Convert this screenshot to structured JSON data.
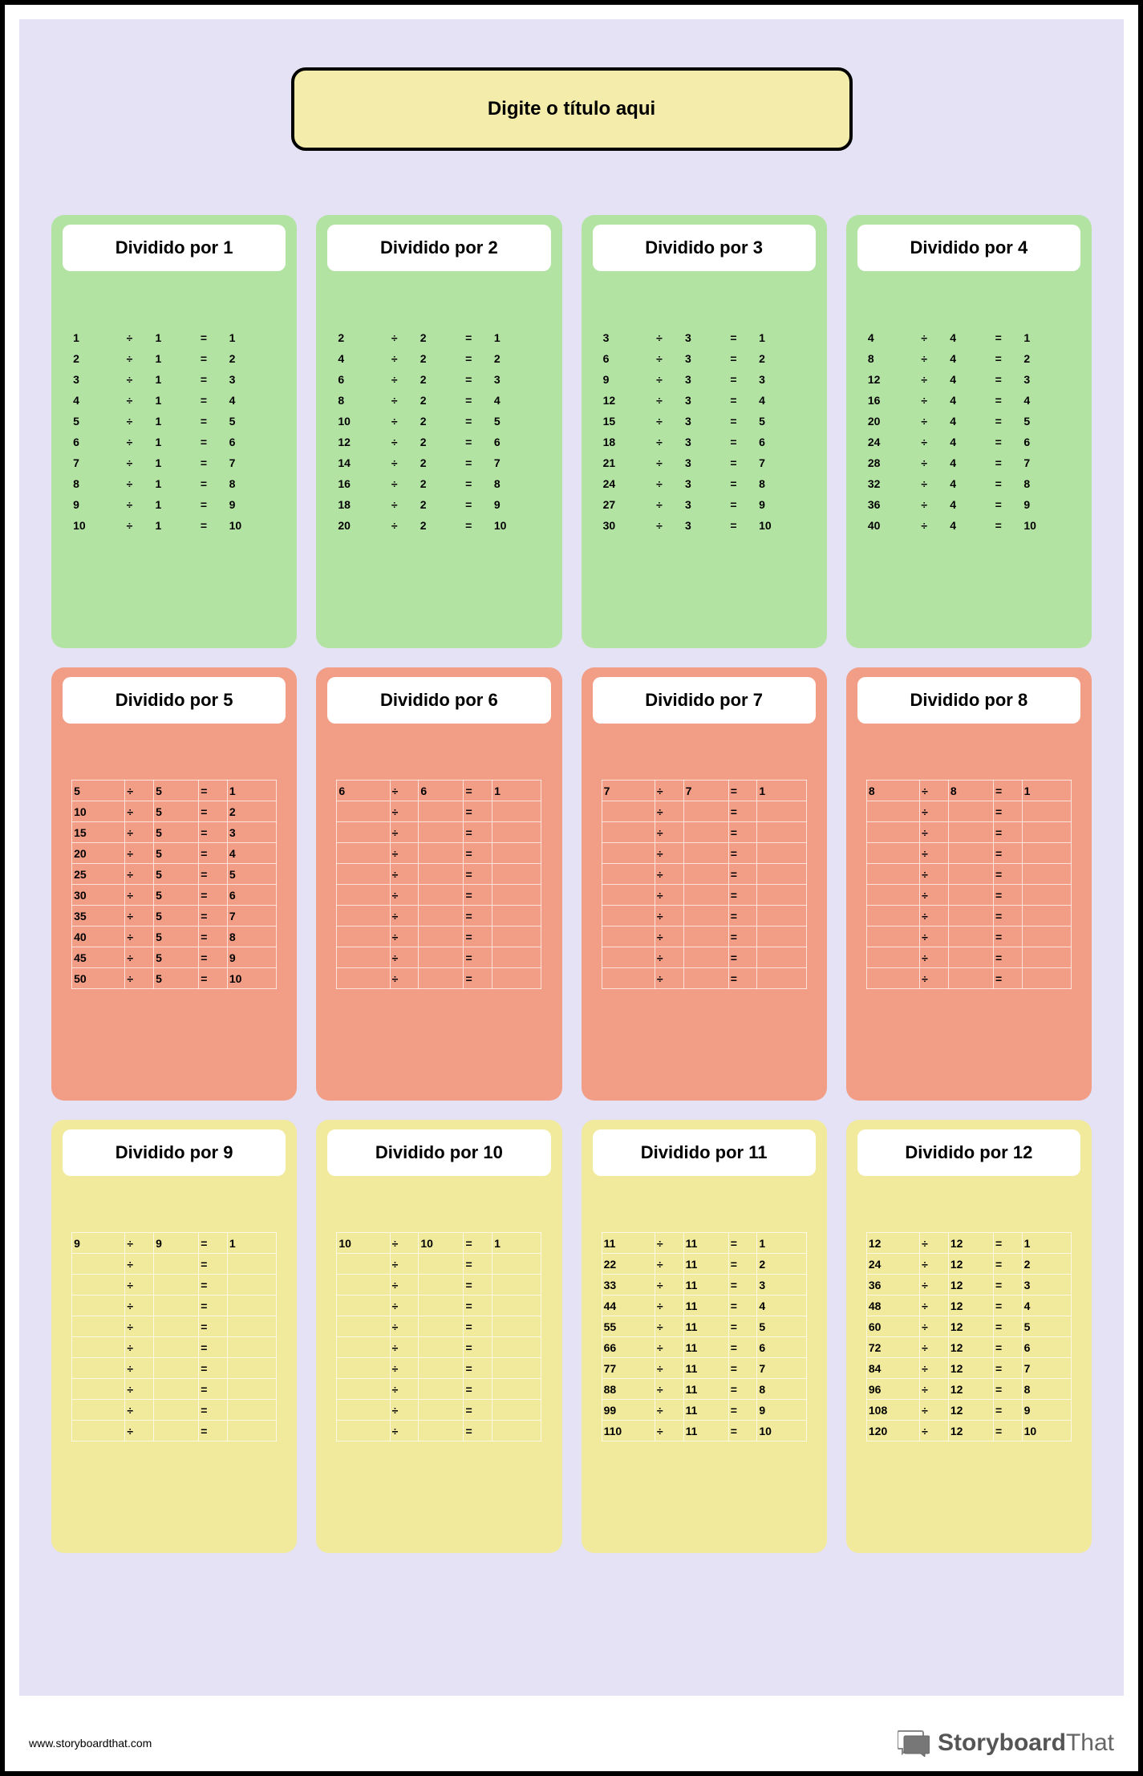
{
  "title": "Digite o título aqui",
  "footer_url": "www.storyboardthat.com",
  "brand_bold": "Storyboard",
  "brand_light": "That",
  "row_bg_colors": [
    "#b3e3a3",
    "#f29d86",
    "#f1e99b"
  ],
  "grid_border_for_rows": [
    false,
    true,
    true
  ],
  "cards": [
    {
      "header": "Dividido por 1",
      "rows": [
        [
          "1",
          "÷",
          "1",
          "=",
          "1"
        ],
        [
          "2",
          "÷",
          "1",
          "=",
          "2"
        ],
        [
          "3",
          "÷",
          "1",
          "=",
          "3"
        ],
        [
          "4",
          "÷",
          "1",
          "=",
          "4"
        ],
        [
          "5",
          "÷",
          "1",
          "=",
          "5"
        ],
        [
          "6",
          "÷",
          "1",
          "=",
          "6"
        ],
        [
          "7",
          "÷",
          "1",
          "=",
          "7"
        ],
        [
          "8",
          "÷",
          "1",
          "=",
          "8"
        ],
        [
          "9",
          "÷",
          "1",
          "=",
          "9"
        ],
        [
          "10",
          "÷",
          "1",
          "=",
          "10"
        ]
      ]
    },
    {
      "header": "Dividido por 2",
      "rows": [
        [
          "2",
          "÷",
          "2",
          "=",
          "1"
        ],
        [
          "4",
          "÷",
          "2",
          "=",
          "2"
        ],
        [
          "6",
          "÷",
          "2",
          "=",
          "3"
        ],
        [
          "8",
          "÷",
          "2",
          "=",
          "4"
        ],
        [
          "10",
          "÷",
          "2",
          "=",
          "5"
        ],
        [
          "12",
          "÷",
          "2",
          "=",
          "6"
        ],
        [
          "14",
          "÷",
          "2",
          "=",
          "7"
        ],
        [
          "16",
          "÷",
          "2",
          "=",
          "8"
        ],
        [
          "18",
          "÷",
          "2",
          "=",
          "9"
        ],
        [
          "20",
          "÷",
          "2",
          "=",
          "10"
        ]
      ]
    },
    {
      "header": "Dividido por 3",
      "rows": [
        [
          "3",
          "÷",
          "3",
          "=",
          "1"
        ],
        [
          "6",
          "÷",
          "3",
          "=",
          "2"
        ],
        [
          "9",
          "÷",
          "3",
          "=",
          "3"
        ],
        [
          "12",
          "÷",
          "3",
          "=",
          "4"
        ],
        [
          "15",
          "÷",
          "3",
          "=",
          "5"
        ],
        [
          "18",
          "÷",
          "3",
          "=",
          "6"
        ],
        [
          "21",
          "÷",
          "3",
          "=",
          "7"
        ],
        [
          "24",
          "÷",
          "3",
          "=",
          "8"
        ],
        [
          "27",
          "÷",
          "3",
          "=",
          "9"
        ],
        [
          "30",
          "÷",
          "3",
          "=",
          "10"
        ]
      ]
    },
    {
      "header": "Dividido por 4",
      "rows": [
        [
          "4",
          "÷",
          "4",
          "=",
          "1"
        ],
        [
          "8",
          "÷",
          "4",
          "=",
          "2"
        ],
        [
          "12",
          "÷",
          "4",
          "=",
          "3"
        ],
        [
          "16",
          "÷",
          "4",
          "=",
          "4"
        ],
        [
          "20",
          "÷",
          "4",
          "=",
          "5"
        ],
        [
          "24",
          "÷",
          "4",
          "=",
          "6"
        ],
        [
          "28",
          "÷",
          "4",
          "=",
          "7"
        ],
        [
          "32",
          "÷",
          "4",
          "=",
          "8"
        ],
        [
          "36",
          "÷",
          "4",
          "=",
          "9"
        ],
        [
          "40",
          "÷",
          "4",
          "=",
          "10"
        ]
      ]
    },
    {
      "header": "Dividido por 5",
      "rows": [
        [
          "5",
          "÷",
          "5",
          "=",
          "1"
        ],
        [
          "10",
          "÷",
          "5",
          "=",
          "2"
        ],
        [
          "15",
          "÷",
          "5",
          "=",
          "3"
        ],
        [
          "20",
          "÷",
          "5",
          "=",
          "4"
        ],
        [
          "25",
          "÷",
          "5",
          "=",
          "5"
        ],
        [
          "30",
          "÷",
          "5",
          "=",
          "6"
        ],
        [
          "35",
          "÷",
          "5",
          "=",
          "7"
        ],
        [
          "40",
          "÷",
          "5",
          "=",
          "8"
        ],
        [
          "45",
          "÷",
          "5",
          "=",
          "9"
        ],
        [
          "50",
          "÷",
          "5",
          "=",
          "10"
        ]
      ]
    },
    {
      "header": "Dividido por 6",
      "rows": [
        [
          "6",
          "÷",
          "6",
          "=",
          "1"
        ],
        [
          "",
          "÷",
          "",
          "=",
          ""
        ],
        [
          "",
          "÷",
          "",
          "=",
          ""
        ],
        [
          "",
          "÷",
          "",
          "=",
          ""
        ],
        [
          "",
          "÷",
          "",
          "=",
          ""
        ],
        [
          "",
          "÷",
          "",
          "=",
          ""
        ],
        [
          "",
          "÷",
          "",
          "=",
          ""
        ],
        [
          "",
          "÷",
          "",
          "=",
          ""
        ],
        [
          "",
          "÷",
          "",
          "=",
          ""
        ],
        [
          "",
          "÷",
          "",
          "=",
          ""
        ]
      ]
    },
    {
      "header": "Dividido por 7",
      "rows": [
        [
          "7",
          "÷",
          "7",
          "=",
          "1"
        ],
        [
          "",
          "÷",
          "",
          "=",
          ""
        ],
        [
          "",
          "÷",
          "",
          "=",
          ""
        ],
        [
          "",
          "÷",
          "",
          "=",
          ""
        ],
        [
          "",
          "÷",
          "",
          "=",
          ""
        ],
        [
          "",
          "÷",
          "",
          "=",
          ""
        ],
        [
          "",
          "÷",
          "",
          "=",
          ""
        ],
        [
          "",
          "÷",
          "",
          "=",
          ""
        ],
        [
          "",
          "÷",
          "",
          "=",
          ""
        ],
        [
          "",
          "÷",
          "",
          "=",
          ""
        ]
      ]
    },
    {
      "header": "Dividido por 8",
      "rows": [
        [
          "8",
          "÷",
          "8",
          "=",
          "1"
        ],
        [
          "",
          "÷",
          "",
          "=",
          ""
        ],
        [
          "",
          "÷",
          "",
          "=",
          ""
        ],
        [
          "",
          "÷",
          "",
          "=",
          ""
        ],
        [
          "",
          "÷",
          "",
          "=",
          ""
        ],
        [
          "",
          "÷",
          "",
          "=",
          ""
        ],
        [
          "",
          "÷",
          "",
          "=",
          ""
        ],
        [
          "",
          "÷",
          "",
          "=",
          ""
        ],
        [
          "",
          "÷",
          "",
          "=",
          ""
        ],
        [
          "",
          "÷",
          "",
          "=",
          ""
        ]
      ]
    },
    {
      "header": "Dividido por 9",
      "rows": [
        [
          "9",
          "÷",
          "9",
          "=",
          "1"
        ],
        [
          "",
          "÷",
          "",
          "=",
          ""
        ],
        [
          "",
          "÷",
          "",
          "=",
          ""
        ],
        [
          "",
          "÷",
          "",
          "=",
          ""
        ],
        [
          "",
          "÷",
          "",
          "=",
          ""
        ],
        [
          "",
          "÷",
          "",
          "=",
          ""
        ],
        [
          "",
          "÷",
          "",
          "=",
          ""
        ],
        [
          "",
          "÷",
          "",
          "=",
          ""
        ],
        [
          "",
          "÷",
          "",
          "=",
          ""
        ],
        [
          "",
          "÷",
          "",
          "=",
          ""
        ]
      ]
    },
    {
      "header": "Dividido por 10",
      "rows": [
        [
          "10",
          "÷",
          "10",
          "=",
          "1"
        ],
        [
          "",
          "÷",
          "",
          "=",
          ""
        ],
        [
          "",
          "÷",
          "",
          "=",
          ""
        ],
        [
          "",
          "÷",
          "",
          "=",
          ""
        ],
        [
          "",
          "÷",
          "",
          "=",
          ""
        ],
        [
          "",
          "÷",
          "",
          "=",
          ""
        ],
        [
          "",
          "÷",
          "",
          "=",
          ""
        ],
        [
          "",
          "÷",
          "",
          "=",
          ""
        ],
        [
          "",
          "÷",
          "",
          "=",
          ""
        ],
        [
          "",
          "÷",
          "",
          "=",
          ""
        ]
      ]
    },
    {
      "header": "Dividido por 11",
      "rows": [
        [
          "11",
          "÷",
          "11",
          "=",
          "1"
        ],
        [
          "22",
          "÷",
          "11",
          "=",
          "2"
        ],
        [
          "33",
          "÷",
          "11",
          "=",
          "3"
        ],
        [
          "44",
          "÷",
          "11",
          "=",
          "4"
        ],
        [
          "55",
          "÷",
          "11",
          "=",
          "5"
        ],
        [
          "66",
          "÷",
          "11",
          "=",
          "6"
        ],
        [
          "77",
          "÷",
          "11",
          "=",
          "7"
        ],
        [
          "88",
          "÷",
          "11",
          "=",
          "8"
        ],
        [
          "99",
          "÷",
          "11",
          "=",
          "9"
        ],
        [
          "110",
          "÷",
          "11",
          "=",
          "10"
        ]
      ]
    },
    {
      "header": "Dividido por 12",
      "rows": [
        [
          "12",
          "÷",
          "12",
          "=",
          "1"
        ],
        [
          "24",
          "÷",
          "12",
          "=",
          "2"
        ],
        [
          "36",
          "÷",
          "12",
          "=",
          "3"
        ],
        [
          "48",
          "÷",
          "12",
          "=",
          "4"
        ],
        [
          "60",
          "÷",
          "12",
          "=",
          "5"
        ],
        [
          "72",
          "÷",
          "12",
          "=",
          "6"
        ],
        [
          "84",
          "÷",
          "12",
          "=",
          "7"
        ],
        [
          "96",
          "÷",
          "12",
          "=",
          "8"
        ],
        [
          "108",
          "÷",
          "12",
          "=",
          "9"
        ],
        [
          "120",
          "÷",
          "12",
          "=",
          "10"
        ]
      ]
    }
  ]
}
